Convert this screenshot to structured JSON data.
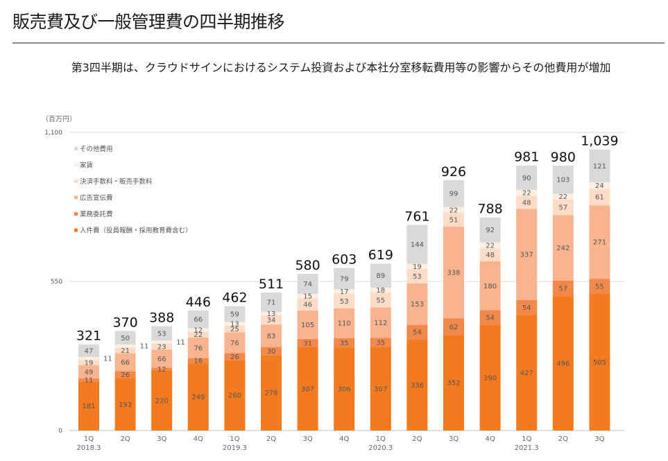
{
  "page": {
    "title": "販売費及び一般管理費の四半期推移",
    "subtitle": "第3四半期は、クラウドサインにおけるシステム投資および本社分室移転費用等の影響からその他費用が増加"
  },
  "chart_data": {
    "type": "bar",
    "stacked": true,
    "title": "販売費及び一般管理費の四半期推移",
    "unit_label": "（百万円）",
    "xlabel": "",
    "ylabel": "百万円",
    "ylim": [
      0,
      1100
    ],
    "yticks": [
      0,
      550,
      1100
    ],
    "ytick_labels": [
      "0",
      "550",
      "1,100"
    ],
    "grid": true,
    "legend_position": "top-left",
    "categories": [
      "1Q",
      "2Q",
      "3Q",
      "4Q",
      "1Q",
      "2Q",
      "3Q",
      "4Q",
      "1Q",
      "2Q",
      "3Q",
      "4Q",
      "1Q",
      "2Q",
      "3Q"
    ],
    "fiscal_year_labels": [
      "2018.3",
      "",
      "",
      "",
      "2019.3",
      "",
      "",
      "",
      "2020.3",
      "",
      "",
      "",
      "2021.3",
      "",
      ""
    ],
    "series": [
      {
        "name": "人件費（役員報酬・採用教育費含む）",
        "color": "#f47a20",
        "values": [
          181,
          193,
          220,
          249,
          260,
          278,
          307,
          306,
          307,
          336,
          352,
          390,
          427,
          496,
          505
        ]
      },
      {
        "name": "業務委託費",
        "color": "#f2894a",
        "values": [
          11,
          26,
          12,
          18,
          26,
          30,
          31,
          35,
          35,
          54,
          62,
          54,
          54,
          57,
          55
        ]
      },
      {
        "name": "広告宣伝費",
        "color": "#f8b48e",
        "values": [
          49,
          66,
          66,
          76,
          76,
          83,
          105,
          110,
          112,
          153,
          338,
          180,
          337,
          242,
          271
        ]
      },
      {
        "name": "決済手数料・販売手数料",
        "color": "#fcdcc6",
        "values": [
          19,
          21,
          23,
          22,
          25,
          34,
          46,
          53,
          55,
          53,
          51,
          48,
          48,
          57,
          61
        ]
      },
      {
        "name": "家賃",
        "color": "#fdeee4",
        "values": [
          11,
          11,
          11,
          12,
          13,
          13,
          15,
          17,
          18,
          19,
          22,
          22,
          22,
          22,
          24
        ]
      },
      {
        "name": "その他費用",
        "color": "#d9d9d9",
        "values": [
          47,
          50,
          53,
          66,
          59,
          71,
          74,
          79,
          89,
          144,
          99,
          92,
          90,
          103,
          121
        ]
      }
    ],
    "totals": [
      321,
      370,
      388,
      446,
      462,
      511,
      580,
      603,
      619,
      761,
      926,
      788,
      981,
      980,
      1039
    ],
    "total_labels": [
      "321",
      "370",
      "388",
      "446",
      "462",
      "511",
      "580",
      "603",
      "619",
      "761",
      "926",
      "788",
      "981",
      "980",
      "1,039"
    ],
    "legend_order": [
      "その他費用",
      "家賃",
      "決済手数料・販売手数料",
      "広告宣伝費",
      "業務委託費",
      "人件費（役員報酬・採用教育費含む）"
    ],
    "outside_label_series": "家賃",
    "outside_label_categories": [
      0,
      1,
      2
    ]
  }
}
